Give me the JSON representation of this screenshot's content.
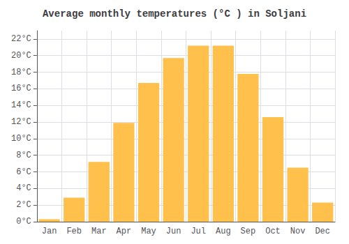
{
  "chart_data": {
    "type": "bar",
    "title": "Average monthly temperatures (°C ) in Soljani",
    "categories": [
      "Jan",
      "Feb",
      "Mar",
      "Apr",
      "May",
      "Jun",
      "Jul",
      "Aug",
      "Sep",
      "Oct",
      "Nov",
      "Dec"
    ],
    "values": [
      0.3,
      2.9,
      7.2,
      11.9,
      16.7,
      19.7,
      21.2,
      21.2,
      17.8,
      12.6,
      6.5,
      2.3
    ],
    "color": "#FFC04C",
    "ylim": [
      0,
      23
    ],
    "yticks": [
      {
        "value": 0,
        "label": "0°C"
      },
      {
        "value": 2,
        "label": "2°C"
      },
      {
        "value": 4,
        "label": "4°C"
      },
      {
        "value": 6,
        "label": "6°C"
      },
      {
        "value": 8,
        "label": "8°C"
      },
      {
        "value": 10,
        "label": "10°C"
      },
      {
        "value": 12,
        "label": "12°C"
      },
      {
        "value": 14,
        "label": "14°C"
      },
      {
        "value": 16,
        "label": "16°C"
      },
      {
        "value": 18,
        "label": "18°C"
      },
      {
        "value": 20,
        "label": "20°C"
      },
      {
        "value": 22,
        "label": "22°C"
      }
    ],
    "grid": true
  }
}
